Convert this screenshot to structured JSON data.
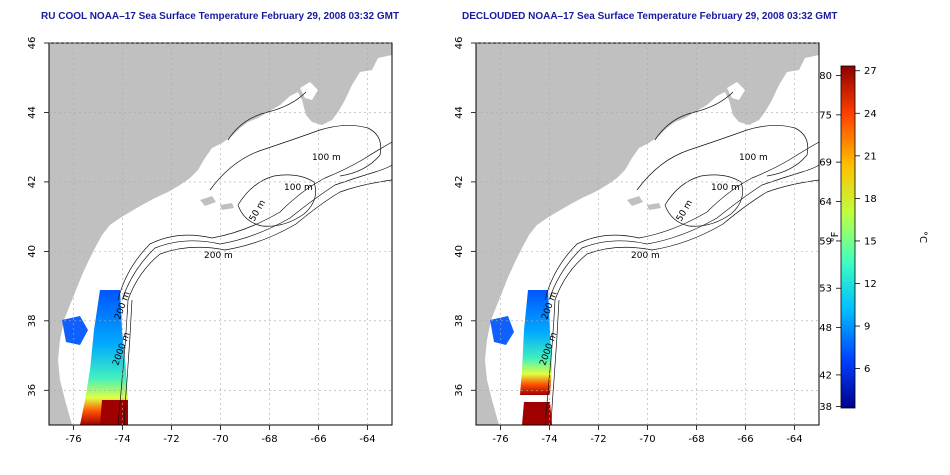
{
  "panels": [
    {
      "title": "RU COOL NOAA–17 Sea Surface Temperature February 29, 2008 03:32 GMT"
    },
    {
      "title": "DECLOUDED NOAA–17 Sea Surface Temperature February 29, 2008 03:32 GMT"
    }
  ],
  "axes": {
    "x_ticks": [
      "-76",
      "-74",
      "-72",
      "-70",
      "-68",
      "-66",
      "-64"
    ],
    "y_ticks": [
      "46",
      "44",
      "42",
      "40",
      "38",
      "36"
    ]
  },
  "contour_labels": {
    "left": [
      "100 m",
      "100 m",
      "50 m",
      "200 m",
      "2000 m",
      "200 m"
    ],
    "right": [
      "100 m",
      "100 m",
      "50 m",
      "200 m",
      "2000 m",
      "200 m"
    ]
  },
  "colorbar": {
    "f_label": "°F",
    "c_label": "°C",
    "f_ticks": [
      "80",
      "75",
      "69",
      "64",
      "59",
      "53",
      "48",
      "42",
      "38"
    ],
    "c_ticks": [
      "27",
      "24",
      "21",
      "18",
      "15",
      "12",
      "9",
      "6"
    ]
  },
  "colors": {
    "land": "#c0c0c0",
    "ocean": "#ffffff",
    "title": "#1a1aa0",
    "scale": [
      "#00008f",
      "#0040ff",
      "#00c0ff",
      "#40ffbf",
      "#bfff40",
      "#ffc000",
      "#ff4000",
      "#8f0000"
    ]
  }
}
